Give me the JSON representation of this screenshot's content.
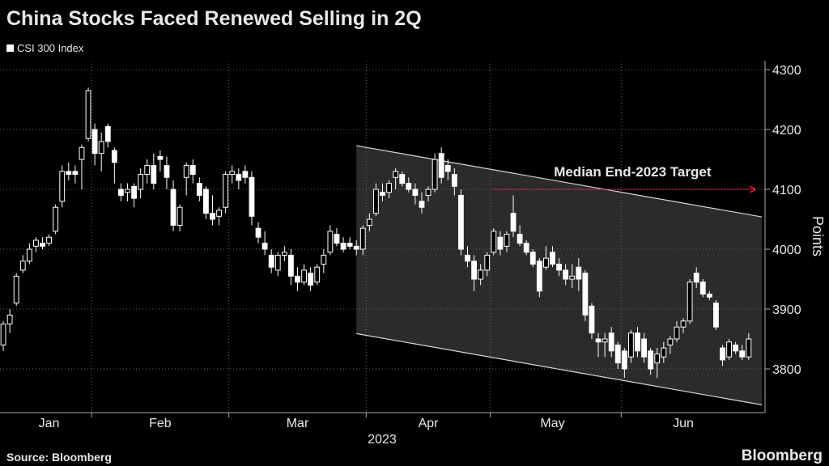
{
  "chart_data": {
    "type": "candlestick",
    "title": "China Stocks Faced Renewed Selling in 2Q",
    "series_name": "CSI 300 Index",
    "color": "#ffffff",
    "y_label": "Points",
    "x_label": "2023",
    "source": "Source: Bloomberg",
    "brand": "Bloomberg",
    "ylim": [
      3727,
      4315
    ],
    "yticks": [
      3800,
      3900,
      4000,
      4100,
      4200,
      4300
    ],
    "grid": true,
    "xgrid": [
      14,
      35,
      56,
      75,
      95
    ],
    "categories": [
      null,
      null,
      null,
      null,
      null,
      null,
      null,
      "Jan",
      null,
      null,
      null,
      null,
      null,
      null,
      null,
      null,
      null,
      null,
      null,
      null,
      null,
      null,
      null,
      null,
      "Feb",
      null,
      null,
      null,
      null,
      null,
      null,
      null,
      null,
      null,
      null,
      null,
      null,
      null,
      null,
      null,
      null,
      null,
      null,
      null,
      null,
      "Mar",
      null,
      null,
      null,
      null,
      null,
      null,
      null,
      null,
      null,
      null,
      null,
      null,
      null,
      null,
      null,
      null,
      null,
      null,
      null,
      "Apr",
      null,
      null,
      null,
      null,
      null,
      null,
      null,
      null,
      null,
      null,
      null,
      null,
      null,
      null,
      null,
      null,
      null,
      null,
      "May",
      null,
      null,
      null,
      null,
      null,
      null,
      null,
      null,
      null,
      null,
      null,
      null,
      null,
      null,
      null,
      null,
      null,
      null,
      null,
      "Jun",
      null,
      null,
      null,
      null,
      null,
      null,
      null,
      null,
      null,
      null
    ],
    "open": [
      3840,
      3875,
      3910,
      3965,
      3980,
      4005,
      4010,
      4010,
      4030,
      4080,
      4130,
      4130,
      4150,
      4185,
      4200,
      4160,
      4205,
      4165,
      4100,
      4095,
      4105,
      4100,
      4125,
      4140,
      4155,
      4140,
      4100,
      4040,
      4120,
      4140,
      4110,
      4100,
      4060,
      4055,
      4070,
      4125,
      4125,
      4130,
      4120,
      4035,
      4010,
      3990,
      3965,
      3990,
      3990,
      3955,
      3945,
      3960,
      3945,
      3975,
      3995,
      4025,
      4010,
      4010,
      4005,
      4000,
      4040,
      4060,
      4095,
      4095,
      4120,
      4125,
      4110,
      4100,
      4080,
      4090,
      4100,
      4160,
      4140,
      4125,
      4090,
      3990,
      3980,
      3950,
      3965,
      3995,
      4020,
      4005,
      4060,
      4025,
      4010,
      3995,
      3980,
      3970,
      3995,
      3975,
      3965,
      3950,
      3970,
      3960,
      3905,
      3850,
      3845,
      3860,
      3840,
      3830,
      3820,
      3860,
      3850,
      3830,
      3810,
      3820,
      3840,
      3850,
      3870,
      3880,
      3960,
      3945,
      3925,
      3910,
      3835,
      3820,
      3840,
      3830,
      3820
    ],
    "high": [
      3880,
      3900,
      3960,
      3990,
      4010,
      4020,
      4020,
      4025,
      4075,
      4140,
      4145,
      4140,
      4175,
      4270,
      4210,
      4195,
      4210,
      4170,
      4110,
      4110,
      4110,
      4135,
      4150,
      4160,
      4165,
      4155,
      4115,
      4075,
      4145,
      4150,
      4120,
      4105,
      4090,
      4070,
      4130,
      4140,
      4135,
      4140,
      4130,
      4045,
      4030,
      4000,
      3995,
      4005,
      4000,
      3970,
      3975,
      3970,
      3975,
      4000,
      4040,
      4035,
      4020,
      4020,
      4015,
      4040,
      4060,
      4110,
      4110,
      4115,
      4135,
      4130,
      4120,
      4110,
      4095,
      4105,
      4160,
      4170,
      4150,
      4135,
      4100,
      4005,
      3990,
      3975,
      3995,
      4035,
      4030,
      4030,
      4090,
      4040,
      4015,
      4000,
      3985,
      4005,
      4005,
      3985,
      3975,
      3975,
      3985,
      3965,
      3910,
      3860,
      3860,
      3870,
      3845,
      3835,
      3865,
      3870,
      3860,
      3835,
      3835,
      3845,
      3855,
      3880,
      3885,
      3950,
      3970,
      3950,
      3930,
      3915,
      3840,
      3850,
      3845,
      3840,
      3860
    ],
    "low": [
      3830,
      3860,
      3905,
      3960,
      3975,
      3995,
      4000,
      4005,
      4025,
      4070,
      4115,
      4110,
      4100,
      4180,
      4140,
      4130,
      4170,
      4110,
      4080,
      4080,
      4070,
      4085,
      4110,
      4100,
      4130,
      4100,
      4030,
      4030,
      4090,
      4110,
      4080,
      4050,
      4040,
      4040,
      4060,
      4110,
      4100,
      4110,
      4040,
      4010,
      3990,
      3960,
      3955,
      3980,
      3940,
      3930,
      3940,
      3930,
      3940,
      3960,
      3990,
      4005,
      3995,
      4000,
      3990,
      3990,
      4030,
      4055,
      4080,
      4085,
      4100,
      4105,
      4095,
      4075,
      4060,
      4080,
      4095,
      4110,
      4115,
      4090,
      3990,
      3970,
      3930,
      3940,
      3955,
      3990,
      3990,
      3995,
      4020,
      4005,
      3990,
      3970,
      3920,
      3965,
      3970,
      3955,
      3940,
      3935,
      3930,
      3880,
      3850,
      3820,
      3820,
      3820,
      3800,
      3785,
      3810,
      3820,
      3810,
      3790,
      3785,
      3810,
      3825,
      3845,
      3860,
      3875,
      3935,
      3920,
      3915,
      3865,
      3805,
      3815,
      3825,
      3815,
      3815
    ],
    "close": [
      3875,
      3890,
      3955,
      3980,
      4000,
      4015,
      4005,
      4020,
      4070,
      4130,
      4125,
      4125,
      4170,
      4265,
      4160,
      4180,
      4180,
      4145,
      4090,
      4100,
      4085,
      4125,
      4140,
      4110,
      4150,
      4120,
      4040,
      4070,
      4140,
      4125,
      4090,
      4060,
      4050,
      4065,
      4125,
      4130,
      4115,
      4120,
      4055,
      4020,
      4000,
      3970,
      3990,
      3995,
      3955,
      3945,
      3965,
      3940,
      3970,
      3990,
      4030,
      4010,
      4000,
      4005,
      4000,
      4035,
      4050,
      4100,
      4090,
      4110,
      4130,
      4110,
      4100,
      4090,
      4070,
      4100,
      4150,
      4120,
      4130,
      4105,
      4000,
      3980,
      3950,
      3965,
      3990,
      4030,
      4000,
      4025,
      4030,
      4010,
      3995,
      3975,
      3930,
      3985,
      3975,
      3965,
      3950,
      3955,
      3950,
      3890,
      3860,
      3845,
      3850,
      3830,
      3810,
      3800,
      3860,
      3830,
      3820,
      3800,
      3825,
      3835,
      3850,
      3870,
      3880,
      3945,
      3945,
      3925,
      3920,
      3870,
      3815,
      3845,
      3830,
      3820,
      3850
    ],
    "channel": {
      "x": [
        54,
        116
      ],
      "upper": [
        4173,
        4054
      ],
      "lower": [
        3859,
        3740
      ]
    },
    "target": {
      "label": "Median End-2023 Target",
      "value": 4100,
      "x": [
        75,
        115
      ],
      "color": "#e8173c"
    }
  }
}
